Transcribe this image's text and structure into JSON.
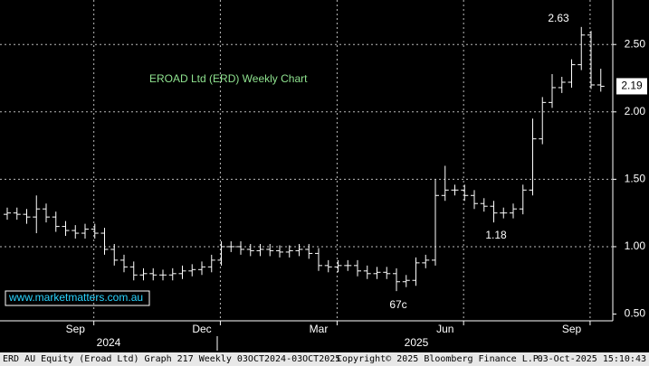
{
  "chart_data": {
    "type": "ohlc",
    "title": "EROAD Ltd (ERD) Weekly Chart",
    "color": "#ffffff",
    "grid": true,
    "categories": [
      null,
      null,
      null,
      null,
      null,
      null,
      null,
      "Sep",
      null,
      null,
      null,
      null,
      null,
      null,
      null,
      null,
      null,
      null,
      null,
      null,
      "Dec",
      null,
      null,
      null,
      null,
      null,
      null,
      null,
      null,
      null,
      null,
      null,
      "Mar",
      null,
      null,
      null,
      null,
      null,
      null,
      null,
      null,
      null,
      null,
      null,
      null,
      "Jun",
      null,
      null,
      null,
      null,
      null,
      null,
      null,
      null,
      null,
      null,
      null,
      null,
      "Sep",
      null,
      null,
      null
    ],
    "open": [
      1.24,
      1.25,
      1.24,
      1.22,
      1.28,
      1.22,
      1.15,
      1.12,
      1.1,
      1.13,
      1.1,
      0.98,
      0.9,
      0.85,
      0.79,
      0.8,
      0.79,
      0.79,
      0.8,
      0.82,
      0.83,
      0.85,
      0.9,
      1.0,
      1.0,
      0.98,
      0.97,
      0.98,
      0.97,
      0.96,
      0.97,
      0.98,
      0.95,
      0.86,
      0.85,
      0.86,
      0.86,
      0.82,
      0.8,
      0.81,
      0.8,
      0.74,
      0.75,
      0.88,
      0.9,
      1.38,
      1.42,
      1.42,
      1.38,
      1.32,
      1.3,
      1.25,
      1.25,
      1.28,
      1.42,
      1.8,
      2.07,
      2.18,
      2.22,
      2.35,
      2.57,
      2.2
    ],
    "high": [
      1.29,
      1.29,
      1.28,
      1.38,
      1.32,
      1.26,
      1.19,
      1.16,
      1.17,
      1.17,
      1.14,
      1.02,
      0.94,
      0.89,
      0.84,
      0.84,
      0.83,
      0.84,
      0.86,
      0.87,
      0.89,
      0.94,
      1.04,
      1.04,
      1.04,
      1.02,
      1.02,
      1.02,
      1.01,
      1.01,
      1.02,
      1.02,
      0.99,
      0.9,
      0.9,
      0.9,
      0.9,
      0.86,
      0.85,
      0.85,
      0.84,
      0.79,
      0.92,
      0.94,
      1.5,
      1.6,
      1.46,
      1.46,
      1.42,
      1.36,
      1.34,
      1.29,
      1.32,
      1.46,
      1.95,
      2.11,
      2.28,
      2.26,
      2.39,
      2.63,
      2.6,
      2.32
    ],
    "low": [
      1.2,
      1.2,
      1.17,
      1.1,
      1.18,
      1.11,
      1.08,
      1.06,
      1.06,
      1.06,
      0.94,
      0.86,
      0.81,
      0.75,
      0.75,
      0.75,
      0.75,
      0.75,
      0.76,
      0.78,
      0.79,
      0.81,
      0.86,
      0.96,
      0.94,
      0.93,
      0.93,
      0.93,
      0.92,
      0.92,
      0.93,
      0.91,
      0.82,
      0.81,
      0.81,
      0.82,
      0.78,
      0.76,
      0.76,
      0.76,
      0.67,
      0.7,
      0.71,
      0.84,
      0.86,
      1.34,
      1.38,
      1.34,
      1.28,
      1.26,
      1.18,
      1.21,
      1.21,
      1.24,
      1.38,
      1.76,
      2.03,
      2.14,
      2.18,
      2.31,
      2.17,
      2.15
    ],
    "close": [
      1.25,
      1.24,
      1.22,
      1.28,
      1.22,
      1.15,
      1.12,
      1.1,
      1.13,
      1.1,
      0.98,
      0.9,
      0.85,
      0.79,
      0.8,
      0.79,
      0.79,
      0.8,
      0.82,
      0.83,
      0.85,
      0.9,
      1.0,
      1.0,
      0.98,
      0.97,
      0.98,
      0.97,
      0.96,
      0.97,
      0.98,
      0.95,
      0.86,
      0.85,
      0.86,
      0.86,
      0.82,
      0.8,
      0.81,
      0.8,
      0.74,
      0.75,
      0.88,
      0.9,
      1.38,
      1.42,
      1.42,
      1.38,
      1.32,
      1.3,
      1.25,
      1.25,
      1.28,
      1.42,
      1.8,
      2.07,
      2.18,
      2.22,
      2.35,
      2.57,
      2.2,
      2.19
    ],
    "ylim": [
      0.45,
      2.83
    ],
    "yticks": [
      {
        "value": 0.5,
        "label": "0.50"
      },
      {
        "value": 1,
        "label": "1.00"
      },
      {
        "value": 1.5,
        "label": "1.50"
      },
      {
        "value": 2,
        "label": "2.00"
      },
      {
        "value": 2.5,
        "label": "2.50"
      }
    ],
    "annotations": [
      "2.63",
      "1.18",
      "67c"
    ],
    "years": [
      "2024",
      "2025"
    ]
  },
  "watermark": "www.marketmatters.com.au",
  "footer": {
    "left": "ERD AU Equity (Eroad Ltd) Graph 217 Weekly 03OCT2024-03OCT2025",
    "center": "Copyright© 2025 Bloomberg Finance L.P.",
    "right": "03-Oct-2025 15:10:43"
  }
}
